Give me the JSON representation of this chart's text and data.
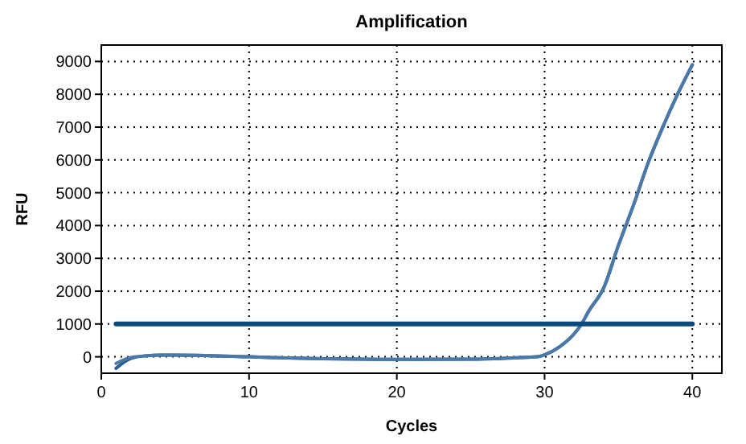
{
  "chart_data": {
    "type": "line",
    "title": "Amplification",
    "xlabel": "Cycles",
    "ylabel": "RFU",
    "xlim": [
      0,
      42
    ],
    "xticks": [
      0,
      10,
      20,
      30,
      40
    ],
    "ylim": [
      -500,
      9500
    ],
    "yticks": [
      0,
      1000,
      2000,
      3000,
      4000,
      5000,
      6000,
      7000,
      8000,
      9000
    ],
    "grid": true,
    "series": [
      {
        "color": "#2b5f94",
        "x": [
          1,
          2,
          3,
          4,
          5,
          7,
          10,
          15,
          20,
          25,
          28,
          29.5,
          30,
          31,
          32,
          32.5,
          33,
          34,
          35,
          35.5,
          36,
          37,
          38,
          39,
          40
        ],
        "values": [
          -350,
          -50,
          30,
          50,
          50,
          40,
          0,
          -60,
          -80,
          -70,
          -30,
          0,
          60,
          300,
          700,
          1000,
          1400,
          2100,
          3400,
          4000,
          4600,
          5900,
          7000,
          8000,
          8900
        ]
      },
      {
        "color": "#4a78a8",
        "x": [
          1,
          2,
          3,
          4,
          5,
          7,
          10,
          15,
          20,
          25,
          28,
          29.5,
          30,
          31,
          32,
          32.5,
          33,
          34,
          35,
          35.5,
          36,
          37,
          38,
          39,
          40
        ],
        "values": [
          -200,
          -20,
          30,
          50,
          50,
          40,
          0,
          -60,
          -80,
          -70,
          -30,
          0,
          60,
          300,
          700,
          1000,
          1400,
          2100,
          3400,
          4000,
          4600,
          5900,
          7000,
          8000,
          8900
        ]
      },
      {
        "color": "#0b4a7d",
        "x": [
          1,
          40
        ],
        "values": [
          1000,
          1000
        ]
      }
    ]
  }
}
